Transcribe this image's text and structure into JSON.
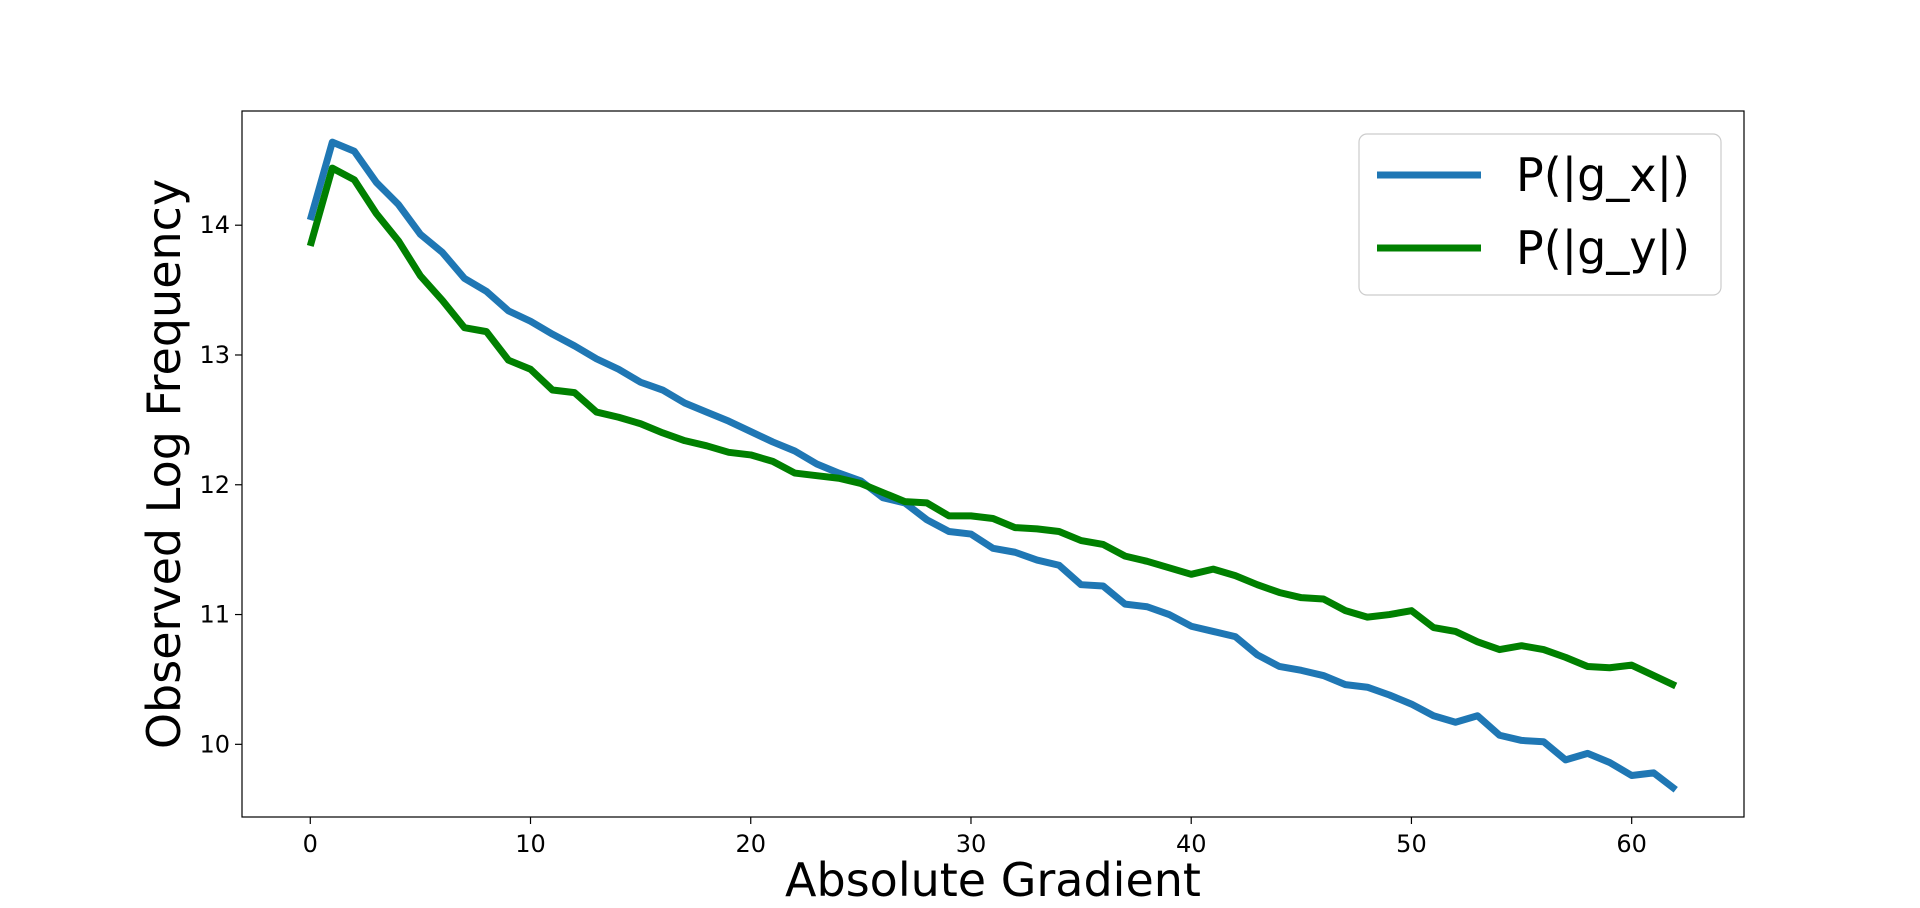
{
  "chart_data": {
    "type": "line",
    "title": "",
    "xlabel": "Absolute Gradient",
    "ylabel": "Observed Log Frequency",
    "xlim": [
      -3.1,
      65.1
    ],
    "ylim": [
      9.44,
      14.88
    ],
    "xticks": [
      0,
      10,
      20,
      30,
      40,
      50,
      60
    ],
    "yticks": [
      10,
      11,
      12,
      13,
      14
    ],
    "grid": false,
    "legend_position": "top-right",
    "x": [
      0,
      1,
      2,
      3,
      4,
      5,
      6,
      7,
      8,
      9,
      10,
      11,
      12,
      13,
      14,
      15,
      16,
      17,
      18,
      19,
      20,
      21,
      22,
      23,
      24,
      25,
      26,
      27,
      28,
      29,
      30,
      31,
      32,
      33,
      34,
      35,
      36,
      37,
      38,
      39,
      40,
      41,
      42,
      43,
      44,
      45,
      46,
      47,
      48,
      49,
      50,
      51,
      52,
      53,
      54,
      55,
      56,
      57,
      58,
      59,
      60,
      61,
      62
    ],
    "series": [
      {
        "name": "P(|g_x|)",
        "color": "#1f77b4",
        "values": [
          14.04,
          14.64,
          14.57,
          14.33,
          14.16,
          13.93,
          13.79,
          13.59,
          13.49,
          13.34,
          13.26,
          13.16,
          13.07,
          12.97,
          12.89,
          12.79,
          12.73,
          12.63,
          12.56,
          12.49,
          12.41,
          12.33,
          12.26,
          12.16,
          12.09,
          12.03,
          11.9,
          11.86,
          11.73,
          11.64,
          11.62,
          11.51,
          11.48,
          11.42,
          11.38,
          11.23,
          11.22,
          11.08,
          11.06,
          11.0,
          10.91,
          10.87,
          10.83,
          10.69,
          10.6,
          10.57,
          10.53,
          10.46,
          10.44,
          10.38,
          10.31,
          10.22,
          10.17,
          10.22,
          10.07,
          10.03,
          10.02,
          9.88,
          9.93,
          9.86,
          9.76,
          9.78,
          9.65
        ]
      },
      {
        "name": "P(|g_y|)",
        "color": "#008000",
        "values": [
          13.84,
          14.44,
          14.35,
          14.09,
          13.88,
          13.61,
          13.42,
          13.21,
          13.18,
          12.96,
          12.89,
          12.73,
          12.71,
          12.56,
          12.52,
          12.47,
          12.4,
          12.34,
          12.3,
          12.25,
          12.23,
          12.18,
          12.09,
          12.07,
          12.05,
          12.01,
          11.94,
          11.87,
          11.86,
          11.76,
          11.76,
          11.74,
          11.67,
          11.66,
          11.64,
          11.57,
          11.54,
          11.45,
          11.41,
          11.36,
          11.31,
          11.35,
          11.3,
          11.23,
          11.17,
          11.13,
          11.12,
          11.03,
          10.98,
          11.0,
          11.03,
          10.9,
          10.87,
          10.79,
          10.73,
          10.76,
          10.73,
          10.67,
          10.6,
          10.59,
          10.61,
          10.53,
          10.45
        ]
      }
    ]
  }
}
